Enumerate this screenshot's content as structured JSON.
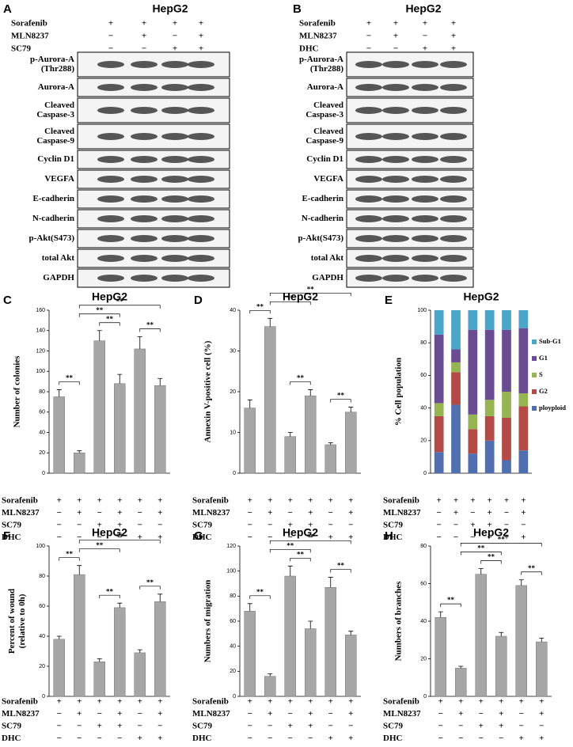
{
  "blots": [
    {
      "letter": "A",
      "title": "HepG2",
      "conditions": [
        {
          "name": "Sorafenib",
          "signs": [
            "+",
            "+",
            "+",
            "+"
          ]
        },
        {
          "name": "MLN8237",
          "signs": [
            "−",
            "+",
            "−",
            "+"
          ]
        },
        {
          "name": "SC79",
          "signs": [
            "−",
            "−",
            "+",
            "+"
          ]
        }
      ],
      "proteins": [
        [
          "p-Aurora-A",
          "(Thr288)"
        ],
        [
          "Aurora-A"
        ],
        [
          "Cleaved",
          "Caspase-3"
        ],
        [
          "Cleaved",
          "Caspase-9"
        ],
        [
          "Cyclin D1"
        ],
        [
          "VEGFA"
        ],
        [
          "E-cadherin"
        ],
        [
          "N-cadherin"
        ],
        [
          "p-Akt(S473)"
        ],
        [
          "total Akt"
        ],
        [
          "GAPDH"
        ]
      ]
    },
    {
      "letter": "B",
      "title": "HepG2",
      "conditions": [
        {
          "name": "Sorafenib",
          "signs": [
            "+",
            "+",
            "+",
            "+"
          ]
        },
        {
          "name": "MLN8237",
          "signs": [
            "−",
            "+",
            "−",
            "+"
          ]
        },
        {
          "name": "DHC",
          "signs": [
            "−",
            "−",
            "+",
            "+"
          ]
        }
      ],
      "proteins": [
        [
          "p-Aurora-A",
          "(Thr288)"
        ],
        [
          "Aurora-A"
        ],
        [
          "Cleaved",
          "Caspase-3"
        ],
        [
          "Cleaved",
          "Caspase-9"
        ],
        [
          "Cyclin D1"
        ],
        [
          "VEGFA"
        ],
        [
          "E-cadherin"
        ],
        [
          "N-cadherin"
        ],
        [
          "p-Akt(S473)"
        ],
        [
          "total Akt"
        ],
        [
          "GAPDH"
        ]
      ]
    }
  ],
  "chart_data": [
    {
      "type": "bar",
      "letter": "C",
      "title": "HepG2",
      "ylabel": [
        "Number of colonies"
      ],
      "color": "#a6a6a6",
      "values": [
        75,
        20,
        130,
        88,
        122,
        86
      ],
      "errors": [
        7,
        2,
        10,
        9,
        12,
        7
      ],
      "ylim": [
        0,
        160
      ],
      "yticks": [
        0,
        20,
        40,
        60,
        80,
        100,
        120,
        140,
        160
      ],
      "comparisons": [
        {
          "bars": [
            0,
            1
          ],
          "label": "**"
        },
        {
          "bars": [
            1,
            5
          ],
          "label": "**"
        },
        {
          "bars": [
            1,
            3
          ],
          "label": "**"
        },
        {
          "bars": [
            2,
            3
          ],
          "label": "**"
        },
        {
          "bars": [
            4,
            5
          ],
          "label": "**"
        }
      ],
      "conditions": [
        {
          "name": "Sorafenib",
          "signs": [
            "+",
            "+",
            "+",
            "+",
            "+",
            "+"
          ]
        },
        {
          "name": "MLN8237",
          "signs": [
            "−",
            "+",
            "−",
            "+",
            "−",
            "+"
          ]
        },
        {
          "name": "SC79",
          "signs": [
            "−",
            "−",
            "+",
            "+",
            "−",
            "−"
          ]
        },
        {
          "name": "DHC",
          "signs": [
            "−",
            "−",
            "−",
            "−",
            "+",
            "+"
          ]
        }
      ]
    },
    {
      "type": "bar",
      "letter": "D",
      "title": "HepG2",
      "ylabel": [
        "Annexin V-positive cell (%)"
      ],
      "color": "#a6a6a6",
      "values": [
        16,
        36,
        9,
        19,
        7,
        15
      ],
      "errors": [
        2,
        2,
        1,
        1.5,
        0.5,
        1.2
      ],
      "ylim": [
        0,
        40
      ],
      "yticks": [
        0,
        10,
        20,
        30,
        40
      ],
      "comparisons": [
        {
          "bars": [
            0,
            1
          ],
          "label": "**"
        },
        {
          "bars": [
            1,
            5
          ],
          "label": "**"
        },
        {
          "bars": [
            1,
            3
          ],
          "label": "**"
        },
        {
          "bars": [
            2,
            3
          ],
          "label": "**"
        },
        {
          "bars": [
            4,
            5
          ],
          "label": "**"
        }
      ],
      "conditions": [
        {
          "name": "Sorafenib",
          "signs": [
            "+",
            "+",
            "+",
            "+",
            "+",
            "+"
          ]
        },
        {
          "name": "MLN8237",
          "signs": [
            "−",
            "+",
            "−",
            "+",
            "−",
            "+"
          ]
        },
        {
          "name": "SC79",
          "signs": [
            "−",
            "−",
            "+",
            "+",
            "−",
            "−"
          ]
        },
        {
          "name": "DHC",
          "signs": [
            "−",
            "−",
            "−",
            "−",
            "+",
            "+"
          ]
        }
      ]
    },
    {
      "type": "stacked",
      "letter": "E",
      "title": "HepG2",
      "ylabel": [
        "% Cell population"
      ],
      "series": [
        {
          "name": "ployploid",
          "color": "#4f6fb0",
          "values": [
            13,
            42,
            12,
            20,
            8,
            14
          ]
        },
        {
          "name": "G2",
          "color": "#b34a46",
          "values": [
            22,
            20,
            15,
            15,
            26,
            27
          ]
        },
        {
          "name": "S",
          "color": "#95b552",
          "values": [
            8,
            6,
            9,
            10,
            16,
            8
          ]
        },
        {
          "name": "G1",
          "color": "#6a4c93",
          "values": [
            42,
            8,
            52,
            43,
            38,
            40
          ]
        },
        {
          "name": "Sub-G1",
          "color": "#4aa6c8",
          "values": [
            15,
            24,
            12,
            12,
            12,
            11
          ]
        }
      ],
      "ylim": [
        0,
        100
      ],
      "yticks": [
        0,
        20,
        40,
        60,
        80,
        100
      ],
      "conditions": [
        {
          "name": "Sorafenib",
          "signs": [
            "+",
            "+",
            "+",
            "+",
            "+",
            "+"
          ]
        },
        {
          "name": "MLN8237",
          "signs": [
            "−",
            "+",
            "−",
            "+",
            "−",
            "+"
          ]
        },
        {
          "name": "SC79",
          "signs": [
            "−",
            "−",
            "+",
            "+",
            "−",
            "−"
          ]
        },
        {
          "name": "DHC",
          "signs": [
            "−",
            "−",
            "−",
            "−",
            "+",
            "+"
          ]
        }
      ]
    },
    {
      "type": "bar",
      "letter": "F",
      "title": "HepG2",
      "ylabel": [
        "Percent of wound",
        "(relative to 0h)"
      ],
      "color": "#a6a6a6",
      "values": [
        38,
        81,
        23,
        59,
        29,
        63
      ],
      "errors": [
        2,
        6,
        2,
        3,
        2,
        5
      ],
      "ylim": [
        0,
        100
      ],
      "yticks": [
        0,
        20,
        40,
        60,
        80,
        100
      ],
      "comparisons": [
        {
          "bars": [
            0,
            1
          ],
          "label": "**"
        },
        {
          "bars": [
            1,
            5
          ],
          "label": "**"
        },
        {
          "bars": [
            1,
            3
          ],
          "label": "**"
        },
        {
          "bars": [
            2,
            3
          ],
          "label": "**"
        },
        {
          "bars": [
            4,
            5
          ],
          "label": "**"
        }
      ],
      "conditions": [
        {
          "name": "Sorafenib",
          "signs": [
            "+",
            "+",
            "+",
            "+",
            "+",
            "+"
          ]
        },
        {
          "name": "MLN8237",
          "signs": [
            "−",
            "+",
            "−",
            "+",
            "−",
            "+"
          ]
        },
        {
          "name": "SC79",
          "signs": [
            "−",
            "−",
            "+",
            "+",
            "−",
            "−"
          ]
        },
        {
          "name": "DHC",
          "signs": [
            "−",
            "−",
            "−",
            "−",
            "+",
            "+"
          ]
        }
      ]
    },
    {
      "type": "bar",
      "letter": "G",
      "title": "HepG2",
      "ylabel": [
        "Numbers of migration"
      ],
      "color": "#a6a6a6",
      "values": [
        68,
        16,
        96,
        54,
        87,
        49
      ],
      "errors": [
        6,
        2,
        8,
        6,
        8,
        3
      ],
      "ylim": [
        0,
        120
      ],
      "yticks": [
        0,
        20,
        40,
        60,
        80,
        100,
        120
      ],
      "comparisons": [
        {
          "bars": [
            0,
            1
          ],
          "label": "**"
        },
        {
          "bars": [
            1,
            5
          ],
          "label": "**"
        },
        {
          "bars": [
            1,
            3
          ],
          "label": "**"
        },
        {
          "bars": [
            2,
            3
          ],
          "label": "**"
        },
        {
          "bars": [
            4,
            5
          ],
          "label": "**"
        }
      ],
      "conditions": [
        {
          "name": "Sorafenib",
          "signs": [
            "+",
            "+",
            "+",
            "+",
            "+",
            "+"
          ]
        },
        {
          "name": "MLN8237",
          "signs": [
            "−",
            "+",
            "−",
            "+",
            "−",
            "+"
          ]
        },
        {
          "name": "SC79",
          "signs": [
            "−",
            "−",
            "+",
            "+",
            "−",
            "−"
          ]
        },
        {
          "name": "DHC",
          "signs": [
            "−",
            "−",
            "−",
            "−",
            "+",
            "+"
          ]
        }
      ]
    },
    {
      "type": "bar",
      "letter": "H",
      "title": "HepG2",
      "ylabel": [
        "Numbers of branches"
      ],
      "color": "#a6a6a6",
      "values": [
        42,
        15,
        65,
        32,
        59,
        29
      ],
      "errors": [
        3,
        1,
        3,
        2,
        3,
        2
      ],
      "ylim": [
        0,
        80
      ],
      "yticks": [
        0,
        20,
        40,
        60,
        80
      ],
      "comparisons": [
        {
          "bars": [
            0,
            1
          ],
          "label": "**"
        },
        {
          "bars": [
            1,
            5
          ],
          "label": "**"
        },
        {
          "bars": [
            1,
            3
          ],
          "label": "**"
        },
        {
          "bars": [
            2,
            3
          ],
          "label": "**"
        },
        {
          "bars": [
            4,
            5
          ],
          "label": "**"
        }
      ],
      "conditions": [
        {
          "name": "Sorafenib",
          "signs": [
            "+",
            "+",
            "+",
            "+",
            "+",
            "+"
          ]
        },
        {
          "name": "MLN8237",
          "signs": [
            "−",
            "+",
            "−",
            "+",
            "−",
            "+"
          ]
        },
        {
          "name": "SC79",
          "signs": [
            "−",
            "−",
            "+",
            "+",
            "−",
            "−"
          ]
        },
        {
          "name": "DHC",
          "signs": [
            "−",
            "−",
            "−",
            "−",
            "+",
            "+"
          ]
        }
      ]
    }
  ]
}
